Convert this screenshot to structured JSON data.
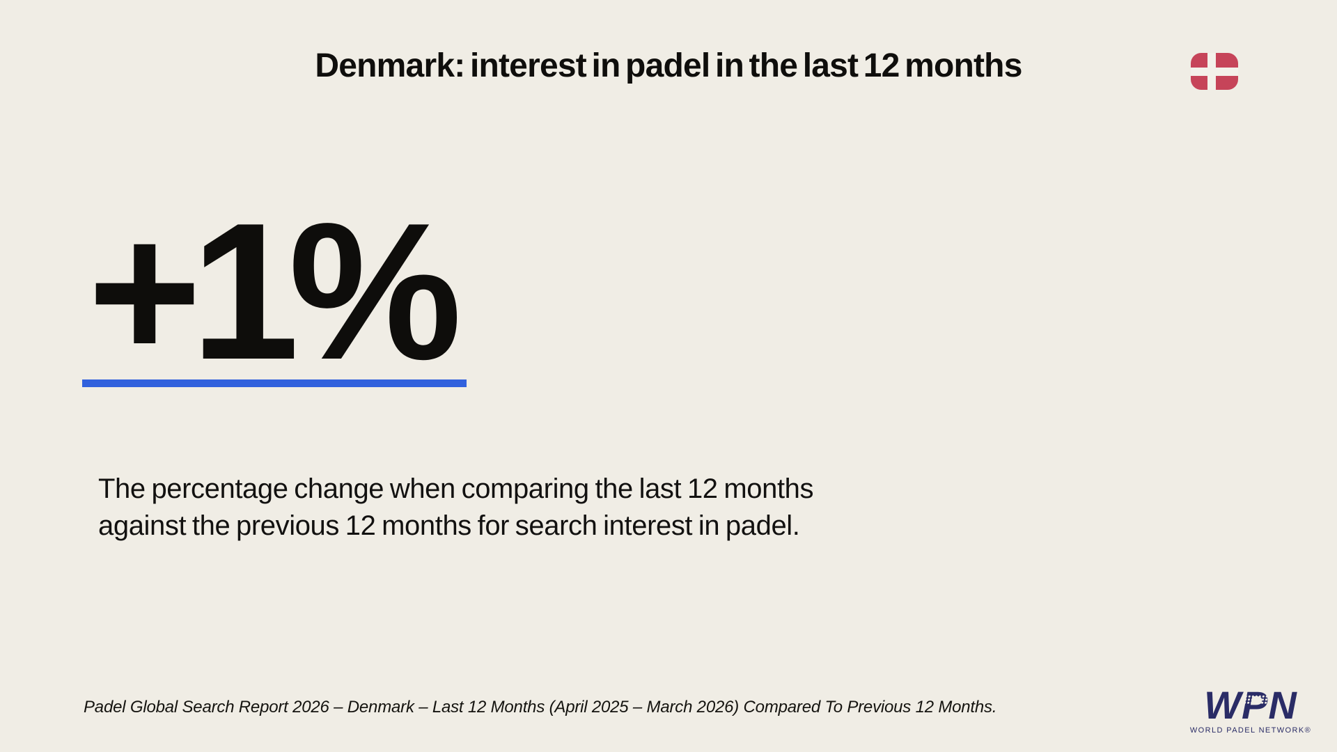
{
  "page": {
    "background_color": "#F0EDE5",
    "text_color": "#0F0E0C",
    "accent_blue": "#3161DD"
  },
  "header": {
    "title": "Denmark: interest in padel in the last 12 months",
    "flag": {
      "country": "Denmark",
      "red": "#C64459",
      "cross_color": "#F3F1EA"
    }
  },
  "stat": {
    "value": "+1%",
    "underline_color": "#3161DD"
  },
  "description": {
    "line1": "The percentage change when comparing the last 12 months",
    "line2": "against the previous 12 months for search interest in padel."
  },
  "footer": {
    "source": "Padel Global Search Report 2026 – Denmark – Last 12 Months (April 2025 – March 2026) Compared To Previous 12 Months."
  },
  "logo": {
    "acronym": "WPN",
    "wordmark": "WORLD PADEL NETWORK®",
    "color": "#2A2C66"
  }
}
